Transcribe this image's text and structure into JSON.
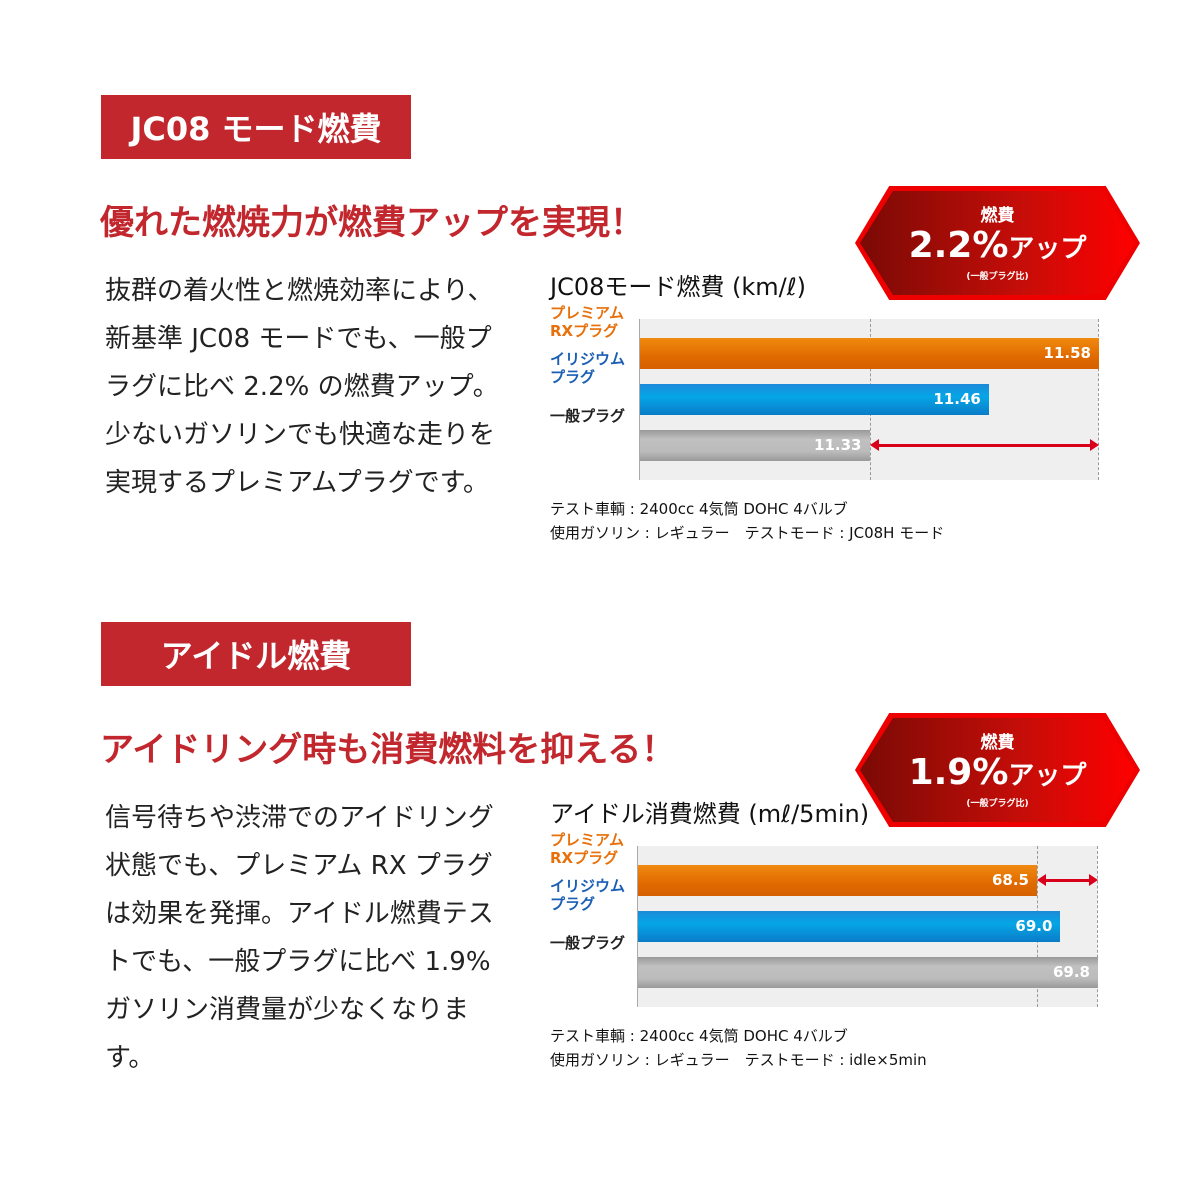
{
  "sections": [
    {
      "tag": "JC08 モード燃費",
      "headline": "優れた燃焼力が燃費アップを実現！",
      "body": "抜群の着火性と燃焼効率により、新基準 JC08 モードでも、一般プラグに比べ 2.2% の燃費アップ。少ないガソリンでも快適な走りを実現するプレミアムプラグです。",
      "badge": {
        "top": "燃費",
        "value": "2.2%",
        "suffix": "アップ",
        "note": "(一般プラグ比)"
      },
      "notes": [
        "テスト車輌 : 2400cc 4気筒 DOHC 4バルブ",
        "使用ガソリン : レギュラー　テストモード : JC08H モード"
      ]
    },
    {
      "tag": "アイドル燃費",
      "headline": "アイドリング時も消費燃料を抑える！",
      "body": "信号待ちや渋滞でのアイドリング状態でも、プレミアム RX プラグは効果を発揮。アイドル燃費テストでも、一般プラグに比べ 1.9% ガソリン消費量が少なくなります。",
      "badge": {
        "top": "燃費",
        "value": "1.9%",
        "suffix": "アップ",
        "note": "(一般プラグ比)"
      },
      "notes": [
        "テスト車輌 : 2400cc 4気筒 DOHC 4バルブ",
        "使用ガソリン : レギュラー　テストモード : idle×5min"
      ]
    }
  ],
  "colors": {
    "premium": "#e8700a",
    "iridium": "#0a9ee0",
    "standard": "#b4b4b4",
    "accent": "#c1272d"
  },
  "chart_data": [
    {
      "type": "bar",
      "orientation": "horizontal",
      "title": "JC08モード燃費 (km/ℓ)",
      "categories": [
        "プレミアム\nRXプラグ",
        "イリジウム\nプラグ",
        "一般プラグ"
      ],
      "values": [
        11.58,
        11.46,
        11.33
      ],
      "value_labels": [
        "11.58",
        "11.46",
        "11.33"
      ],
      "xlim": [
        11.08,
        11.58
      ],
      "arrow": [
        11.33,
        11.58
      ],
      "grid": false
    },
    {
      "type": "bar",
      "orientation": "horizontal",
      "title": "アイドル消費燃費 (mℓ/5min)",
      "categories": [
        "プレミアム\nRXプラグ",
        "イリジウム\nプラグ",
        "一般プラグ"
      ],
      "values": [
        68.5,
        69.0,
        69.8
      ],
      "value_labels": [
        "68.5",
        "69.0",
        "69.8"
      ],
      "xlim": [
        60,
        69.8
      ],
      "arrow": [
        68.5,
        69.8
      ],
      "grid": false
    }
  ]
}
